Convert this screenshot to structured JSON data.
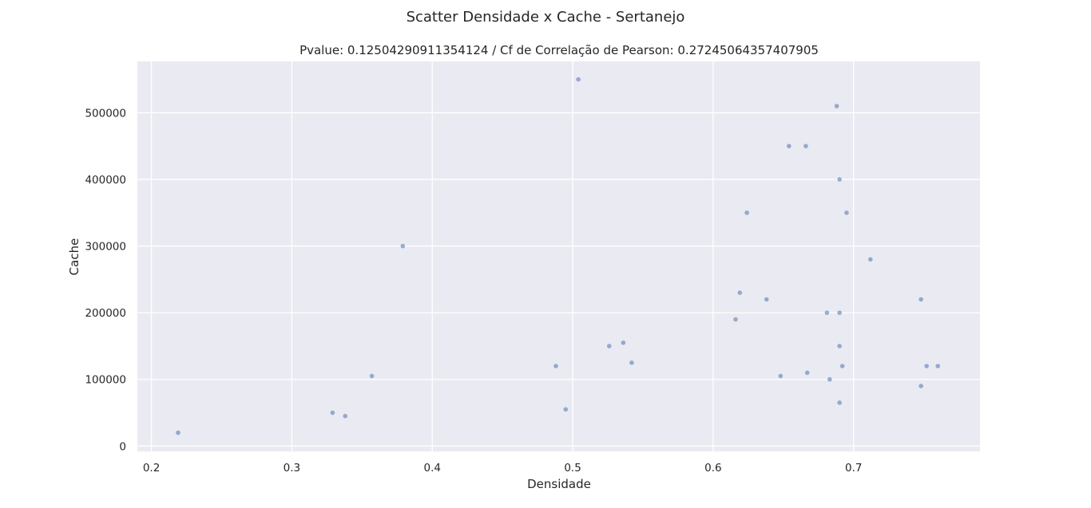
{
  "figure": {
    "suptitle": "Scatter Densidade x Cache - Sertanejo"
  },
  "chart_data": {
    "type": "scatter",
    "title": "Pvalue: 0.12504290911354124 / Cf de Correlação de Pearson: 0.27245064357407905",
    "xlabel": "Densidade",
    "ylabel": "Cache",
    "xlim": [
      0.19,
      0.79
    ],
    "ylim": [
      -8000,
      577000
    ],
    "xticks": [
      0.2,
      0.3,
      0.4,
      0.5,
      0.6,
      0.7
    ],
    "xtick_labels": [
      "0.2",
      "0.3",
      "0.4",
      "0.5",
      "0.6",
      "0.7"
    ],
    "yticks": [
      0,
      100000,
      200000,
      300000,
      400000,
      500000
    ],
    "ytick_labels": [
      "0",
      "100000",
      "200000",
      "300000",
      "400000",
      "500000"
    ],
    "grid": true,
    "color": "#4c72b0",
    "points": [
      {
        "x": 0.219,
        "y": 20000
      },
      {
        "x": 0.329,
        "y": 50000
      },
      {
        "x": 0.338,
        "y": 45000
      },
      {
        "x": 0.357,
        "y": 105000
      },
      {
        "x": 0.379,
        "y": 300000
      },
      {
        "x": 0.488,
        "y": 120000
      },
      {
        "x": 0.495,
        "y": 55000
      },
      {
        "x": 0.504,
        "y": 550000
      },
      {
        "x": 0.526,
        "y": 150000
      },
      {
        "x": 0.536,
        "y": 155000
      },
      {
        "x": 0.542,
        "y": 125000
      },
      {
        "x": 0.616,
        "y": 190000
      },
      {
        "x": 0.619,
        "y": 230000
      },
      {
        "x": 0.624,
        "y": 350000
      },
      {
        "x": 0.638,
        "y": 220000
      },
      {
        "x": 0.648,
        "y": 105000
      },
      {
        "x": 0.654,
        "y": 450000
      },
      {
        "x": 0.666,
        "y": 450000
      },
      {
        "x": 0.667,
        "y": 110000
      },
      {
        "x": 0.681,
        "y": 200000
      },
      {
        "x": 0.683,
        "y": 100000
      },
      {
        "x": 0.688,
        "y": 510000
      },
      {
        "x": 0.69,
        "y": 400000
      },
      {
        "x": 0.69,
        "y": 200000
      },
      {
        "x": 0.69,
        "y": 150000
      },
      {
        "x": 0.69,
        "y": 65000
      },
      {
        "x": 0.692,
        "y": 120000
      },
      {
        "x": 0.695,
        "y": 350000
      },
      {
        "x": 0.712,
        "y": 280000
      },
      {
        "x": 0.748,
        "y": 220000
      },
      {
        "x": 0.748,
        "y": 90000
      },
      {
        "x": 0.752,
        "y": 120000
      },
      {
        "x": 0.76,
        "y": 120000
      }
    ]
  }
}
